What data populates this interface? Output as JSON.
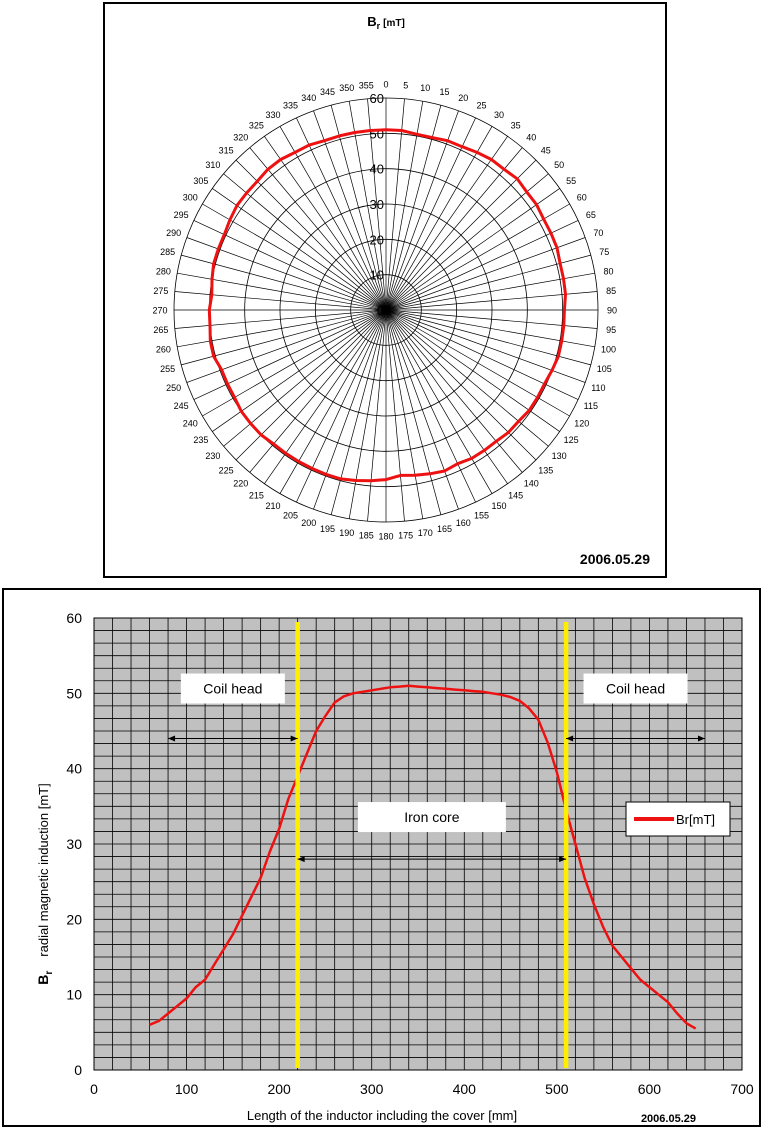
{
  "chart_data": [
    {
      "type": "polar-line",
      "title_main": "B",
      "title_sub": "r",
      "title_unit": "[mT]",
      "date_stamp": "2006.05.29",
      "radial_ticks": [
        0,
        10,
        20,
        30,
        40,
        50,
        60
      ],
      "rlim": [
        0,
        60
      ],
      "angle_ticks": [
        0,
        5,
        10,
        15,
        20,
        25,
        30,
        35,
        40,
        45,
        50,
        55,
        60,
        65,
        70,
        75,
        80,
        85,
        90,
        95,
        100,
        105,
        110,
        115,
        120,
        125,
        130,
        135,
        140,
        145,
        150,
        155,
        160,
        165,
        170,
        175,
        180,
        185,
        190,
        195,
        200,
        205,
        210,
        215,
        220,
        225,
        230,
        235,
        240,
        245,
        250,
        255,
        260,
        265,
        270,
        275,
        280,
        285,
        290,
        295,
        300,
        305,
        310,
        315,
        320,
        325,
        330,
        335,
        340,
        345,
        350,
        355
      ],
      "grid": true,
      "series": [
        {
          "color": "#ee1111",
          "angles": [
            0,
            5,
            10,
            15,
            20,
            25,
            30,
            35,
            40,
            45,
            50,
            55,
            60,
            65,
            70,
            75,
            80,
            85,
            90,
            95,
            100,
            105,
            110,
            115,
            120,
            125,
            130,
            135,
            140,
            145,
            150,
            155,
            160,
            165,
            170,
            175,
            180,
            185,
            190,
            195,
            200,
            205,
            210,
            215,
            220,
            225,
            230,
            235,
            240,
            245,
            250,
            255,
            260,
            265,
            270,
            275,
            280,
            285,
            290,
            295,
            300,
            305,
            310,
            315,
            320,
            325,
            330,
            335,
            340,
            345,
            350,
            355
          ],
          "values": [
            51,
            51,
            50.5,
            50.5,
            51,
            51,
            51.5,
            52,
            52,
            52.5,
            52,
            52,
            51.5,
            51.5,
            51.5,
            51,
            51,
            51,
            50.5,
            50.5,
            50.5,
            50.5,
            50,
            49.5,
            49.5,
            49.5,
            49,
            49,
            48.5,
            48.5,
            48.5,
            48,
            48.5,
            48,
            47.5,
            47,
            48,
            48.5,
            49,
            49.5,
            49.5,
            49.5,
            49.5,
            49.5,
            49.5,
            50,
            50,
            50,
            49.5,
            49.5,
            49.5,
            50.5,
            50.5,
            50,
            50,
            49.5,
            50,
            50.5,
            50.5,
            50.5,
            51,
            51.5,
            51.5,
            51.5,
            52,
            52,
            51.5,
            51.5,
            51,
            51,
            51,
            51
          ]
        }
      ]
    },
    {
      "type": "line",
      "xlabel": "Length of the inductor including the cover [mm]",
      "ylabel_symbol": "B",
      "ylabel_sub": "r",
      "ylabel": "radial magnetic induction [mT]",
      "date_stamp": "2006.05.29",
      "xlim": [
        0,
        700
      ],
      "ylim": [
        0,
        60
      ],
      "xticks": [
        0,
        100,
        200,
        300,
        400,
        500,
        600,
        700
      ],
      "yticks": [
        0,
        10,
        20,
        30,
        40,
        50,
        60
      ],
      "grid": true,
      "legend_position": "right",
      "colors": {
        "plot_bg": "#c0c0c0",
        "grid": "#000000",
        "line": "#ee1111",
        "marker": "#ffee00"
      },
      "series": [
        {
          "name": "Br[mT]",
          "x": [
            60,
            70,
            80,
            90,
            100,
            110,
            120,
            130,
            140,
            150,
            160,
            170,
            180,
            190,
            200,
            210,
            220,
            230,
            240,
            250,
            260,
            270,
            280,
            290,
            300,
            310,
            320,
            330,
            340,
            350,
            360,
            370,
            380,
            390,
            400,
            410,
            420,
            430,
            440,
            450,
            460,
            470,
            480,
            490,
            500,
            510,
            520,
            530,
            540,
            550,
            560,
            570,
            580,
            590,
            600,
            610,
            620,
            630,
            640,
            650
          ],
          "y": [
            6,
            6.5,
            7.5,
            8.5,
            9.5,
            11,
            12,
            14,
            16,
            18,
            20.5,
            23,
            25.5,
            29,
            32,
            36,
            39,
            42,
            45,
            47,
            48.8,
            49.6,
            50,
            50.2,
            50.4,
            50.6,
            50.8,
            50.9,
            51,
            50.9,
            50.8,
            50.7,
            50.6,
            50.5,
            50.4,
            50.3,
            50.2,
            50,
            49.8,
            49.5,
            49,
            48,
            46.5,
            43.5,
            39.5,
            34.5,
            30,
            25.5,
            22,
            19,
            16.5,
            15,
            13.5,
            12,
            11,
            10,
            9,
            7.5,
            6.2,
            5.5
          ]
        }
      ],
      "markers": [
        {
          "x": 220
        },
        {
          "x": 510
        }
      ],
      "annotations": [
        {
          "text": "Coil head",
          "from_x": 80,
          "to_x": 220,
          "y": 44
        },
        {
          "text": "Iron core",
          "from_x": 220,
          "to_x": 510,
          "y": 28
        },
        {
          "text": "Coil head",
          "from_x": 510,
          "to_x": 660,
          "y": 44
        }
      ]
    }
  ]
}
